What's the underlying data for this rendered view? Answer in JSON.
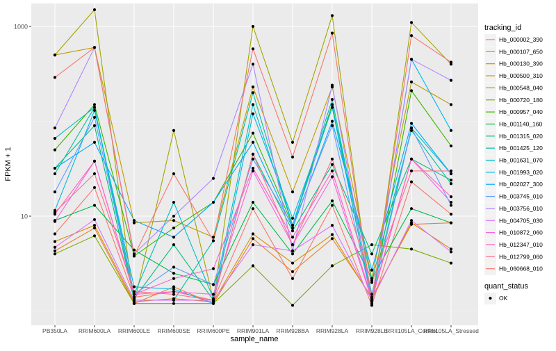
{
  "chart_data": {
    "type": "line",
    "title": "",
    "xlabel": "sample_name",
    "ylabel": "FPKM + 1",
    "yscale": "log10",
    "ylim": [
      0.93,
      2100
    ],
    "y_major_ticks": [
      10,
      1000
    ],
    "y_tick_labels": [
      "10",
      "1000"
    ],
    "y_minor_ticks": [
      1,
      100
    ],
    "grid": true,
    "legend_position": "right",
    "categories": [
      "PB350LA",
      "RRIM600LA",
      "RRIM600LE",
      "RRIM600SE",
      "RRIM600PE",
      "RRIM901LA",
      "RRIM928BA",
      "RRIM928LA",
      "RRIM928LE",
      "RRII105LA_Control",
      "RRII105LA_Stressed"
    ],
    "legend_title": "tracking_id",
    "shape_legend_title": "quant_status",
    "shape_legend_entries": [
      "OK"
    ],
    "series": [
      {
        "name": "Hb_000002_390",
        "color": "#F8766D",
        "values": [
          6.5,
          20,
          1.4,
          1.6,
          1.3,
          12,
          2.2,
          13,
          1.15,
          23,
          10.5
        ]
      },
      {
        "name": "Hb_000107_650",
        "color": "#EA8331",
        "values": [
          4.3,
          7.5,
          1.2,
          1.8,
          1.2,
          5.8,
          2.6,
          5.8,
          1.4,
          8.2,
          8.5
        ]
      },
      {
        "name": "Hb_000130_390",
        "color": "#D89000",
        "values": [
          5.4,
          8,
          1.25,
          1.35,
          1.25,
          6.5,
          3.2,
          6.4,
          1.35,
          8.5,
          4.5
        ]
      },
      {
        "name": "Hb_000500_310",
        "color": "#C09B00",
        "values": [
          500,
          600,
          8.5,
          9,
          6,
          230,
          18,
          230,
          2.2,
          260,
          150
        ]
      },
      {
        "name": "Hb_000548_040",
        "color": "#A3A500",
        "values": [
          500,
          1500,
          1.2,
          80,
          1.3,
          1000,
          60,
          1300,
          1.2,
          1100,
          400
        ]
      },
      {
        "name": "Hb_000720_180",
        "color": "#7CAE00",
        "values": [
          4,
          6.2,
          1.2,
          1.2,
          1.2,
          3,
          1.15,
          3,
          5,
          4.5,
          3.2
        ]
      },
      {
        "name": "Hb_000957_040",
        "color": "#39B600",
        "values": [
          50,
          150,
          3.8,
          7.5,
          14,
          75,
          8,
          150,
          1.3,
          210,
          55
        ]
      },
      {
        "name": "Hb_001140_160",
        "color": "#00BB4E",
        "values": [
          9,
          13,
          4.4,
          2.5,
          1.9,
          14,
          4,
          14.5,
          2.2,
          12,
          8.5
        ]
      },
      {
        "name": "Hb_001315_020",
        "color": "#00BF7D",
        "values": [
          32,
          90,
          1.35,
          5,
          1.3,
          45,
          7,
          35,
          4,
          40,
          24
        ]
      },
      {
        "name": "Hb_001425_120",
        "color": "#00C1A3",
        "values": [
          28,
          140,
          1.3,
          1.3,
          5.5,
          200,
          8,
          140,
          2.1,
          80,
          22
        ]
      },
      {
        "name": "Hb_001631_070",
        "color": "#00BFC4",
        "values": [
          66,
          140,
          1.5,
          14,
          1.35,
          150,
          8,
          170,
          1.5,
          85,
          28
        ]
      },
      {
        "name": "Hb_001993_020",
        "color": "#00B8E7",
        "values": [
          11.5,
          130,
          1.8,
          1.7,
          1.2,
          120,
          9.5,
          140,
          1.35,
          450,
          80
        ]
      },
      {
        "name": "Hb_002027_300",
        "color": "#00A9FF",
        "values": [
          32,
          60,
          9,
          6,
          14,
          60,
          7.5,
          100,
          2.7,
          95,
          28
        ]
      },
      {
        "name": "Hb_003745_010",
        "color": "#619CFF",
        "values": [
          18,
          110,
          1.5,
          2.9,
          1.9,
          40,
          8,
          90,
          1.3,
          85,
          13
        ]
      },
      {
        "name": "Hb_003756_010",
        "color": "#AE87FF",
        "values": [
          85,
          600,
          4,
          10,
          25,
          400,
          4.3,
          240,
          1.35,
          450,
          270
        ]
      },
      {
        "name": "Hb_004705_030",
        "color": "#DB72FB",
        "values": [
          4.7,
          9.2,
          1.3,
          1.3,
          1.3,
          5,
          4.3,
          8,
          1.3,
          9,
          4.2
        ]
      },
      {
        "name": "Hb_010872_060",
        "color": "#F564E3",
        "values": [
          8.8,
          38,
          1.5,
          1.6,
          1.5,
          30,
          5,
          26,
          1.3,
          40,
          14
        ]
      },
      {
        "name": "Hb_012347_010",
        "color": "#FF61C3",
        "values": [
          10.5,
          38,
          1.5,
          2.2,
          2.8,
          32,
          6,
          30,
          1.35,
          40,
          16
        ]
      },
      {
        "name": "Hb_012799_060",
        "color": "#FF6C91",
        "values": [
          11,
          28,
          1.6,
          1.5,
          1.3,
          45,
          5,
          40,
          2,
          30,
          30
        ]
      },
      {
        "name": "Hb_060668_010",
        "color": "#F8766D",
        "values": [
          290,
          600,
          3.8,
          28,
          5.5,
          580,
          42,
          850,
          1.25,
          800,
          420
        ]
      }
    ]
  }
}
